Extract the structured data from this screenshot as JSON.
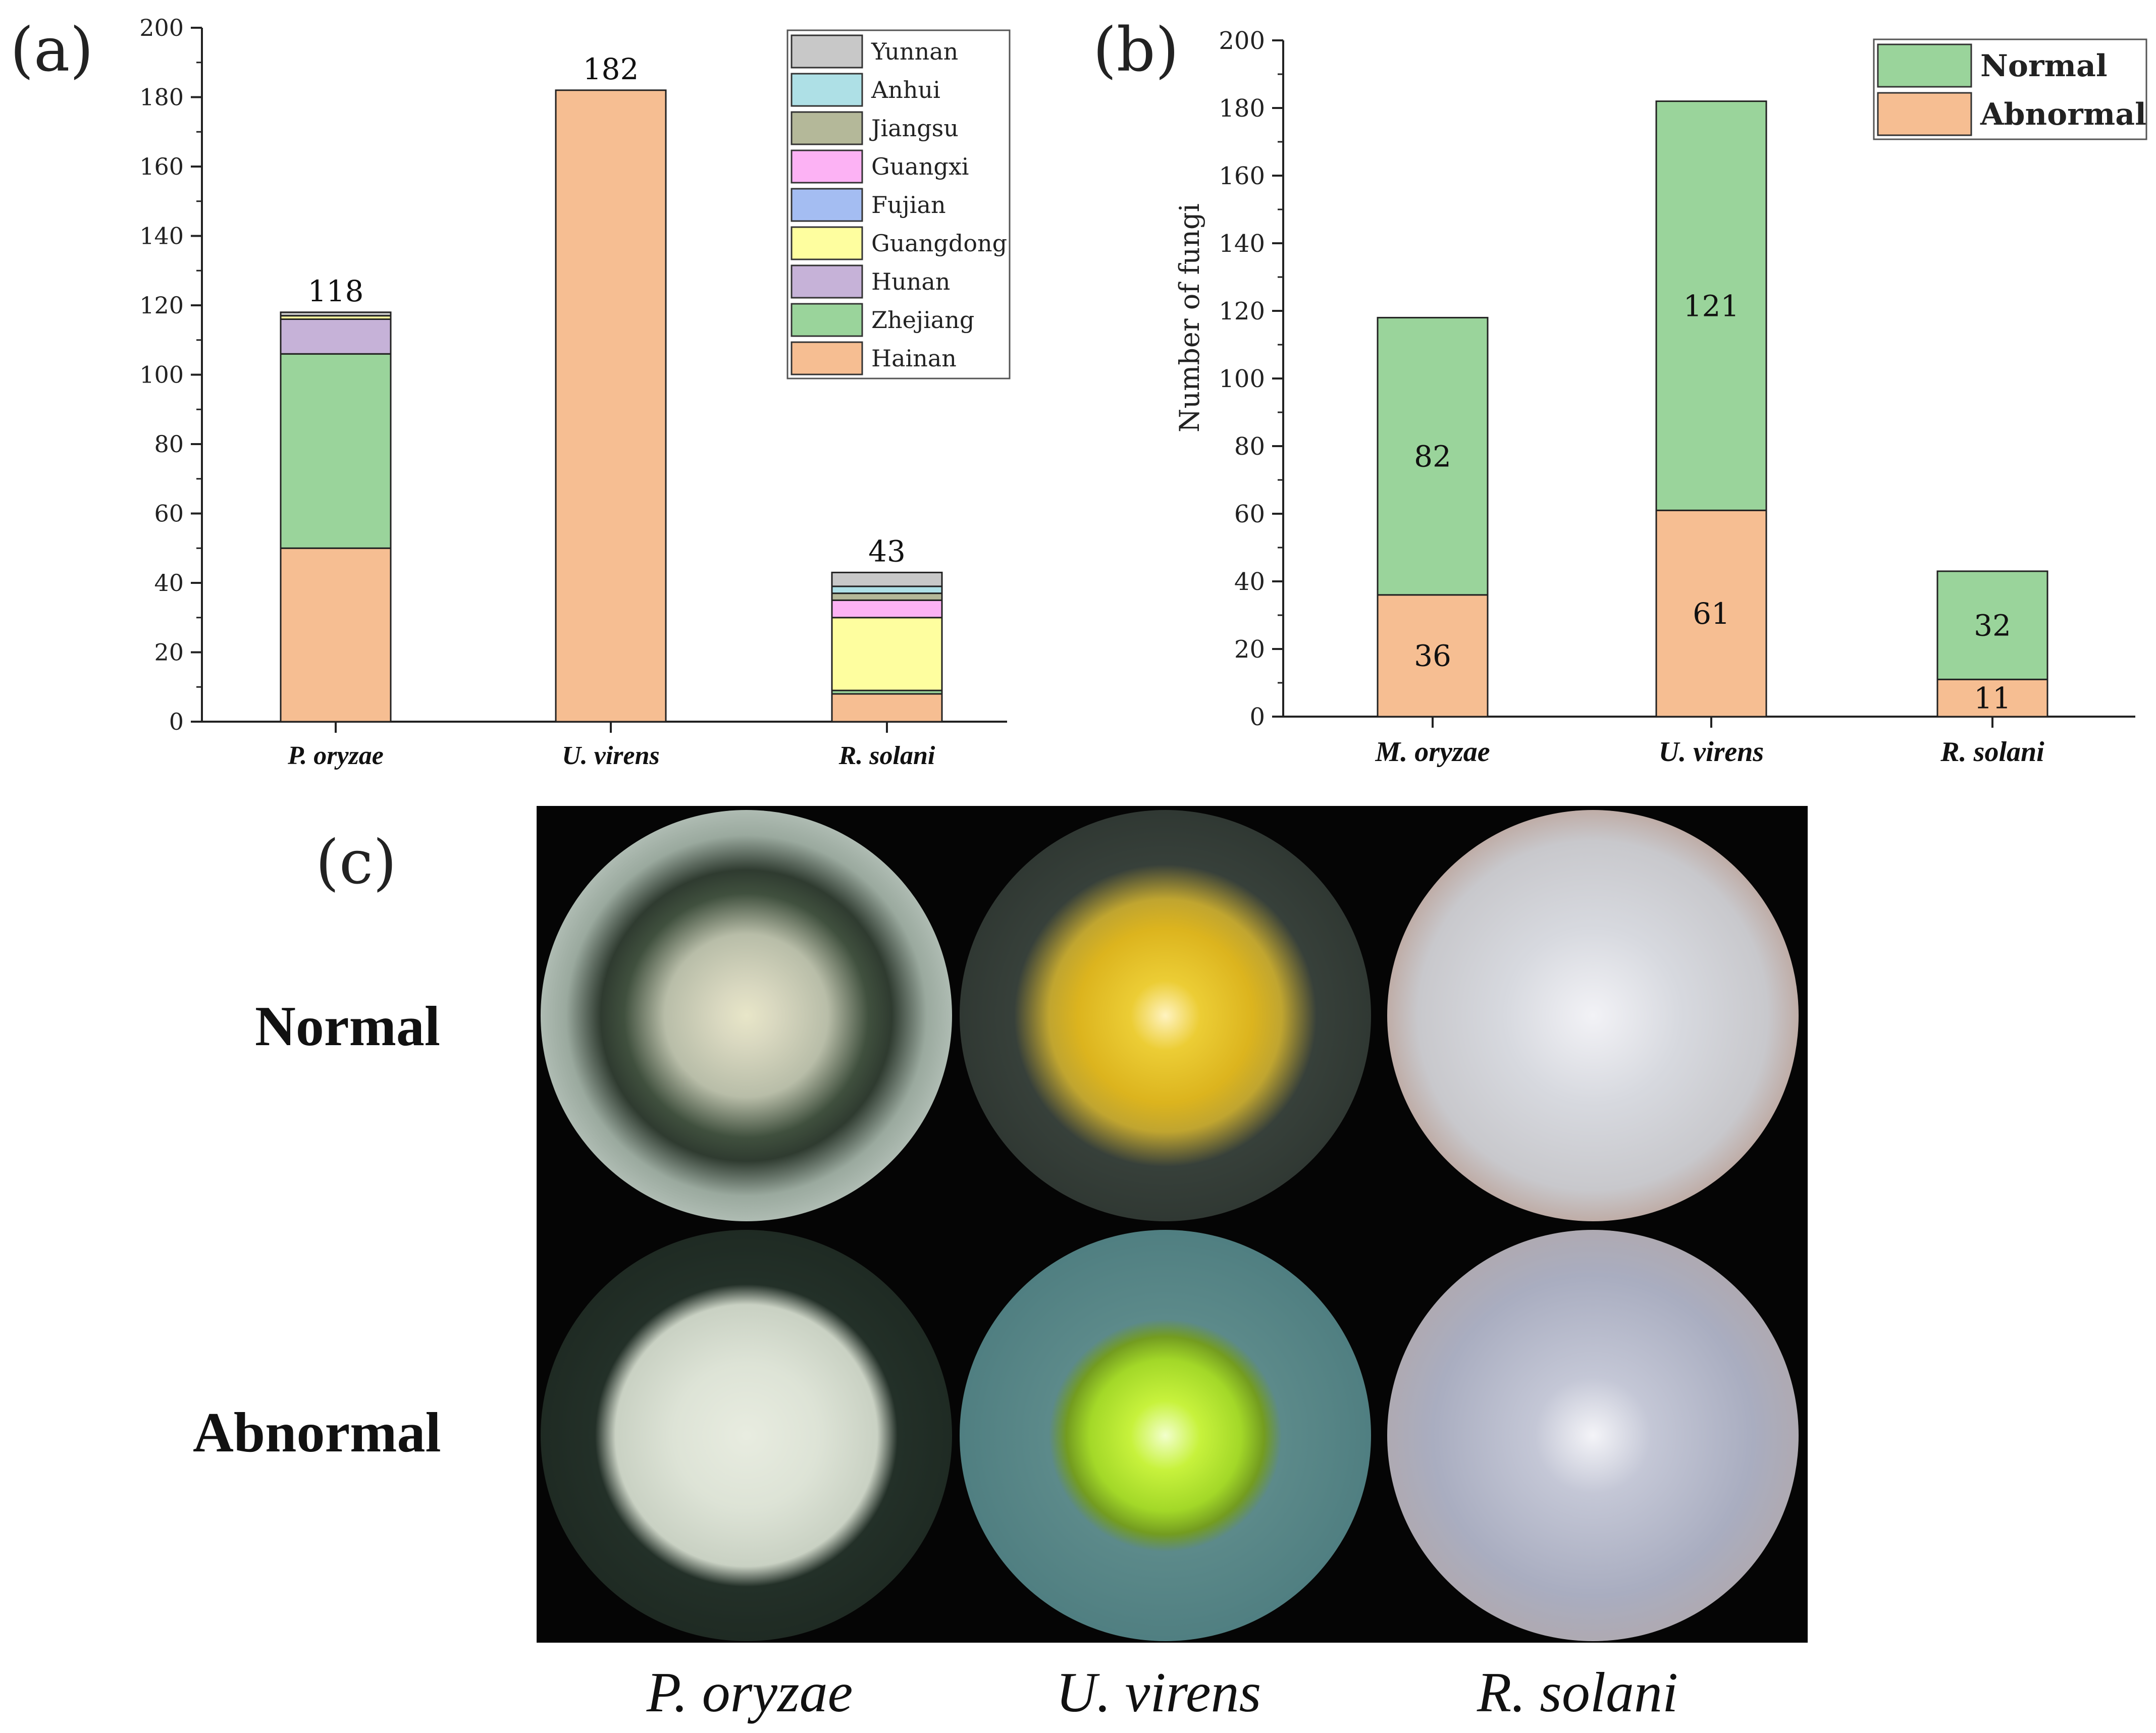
{
  "panels": {
    "a": "(a)",
    "b": "(b)",
    "c": "(c)"
  },
  "chart_data": [
    {
      "type": "bar",
      "stacked": true,
      "categories": [
        "P. oryzae",
        "U. virens",
        "R. solani"
      ],
      "series": [
        {
          "name": "Hainan",
          "values": [
            50,
            182,
            8
          ]
        },
        {
          "name": "Zhejiang",
          "values": [
            56,
            0,
            1
          ]
        },
        {
          "name": "Hunan",
          "values": [
            10,
            0,
            0
          ]
        },
        {
          "name": "Guangdong",
          "values": [
            1,
            0,
            21
          ]
        },
        {
          "name": "Fujian",
          "values": [
            0,
            0,
            0
          ]
        },
        {
          "name": "Guangxi",
          "values": [
            0,
            0,
            5
          ]
        },
        {
          "name": "Jiangsu",
          "values": [
            0,
            0,
            2
          ]
        },
        {
          "name": "Anhui",
          "values": [
            0,
            0,
            2
          ]
        },
        {
          "name": "Yunnan",
          "values": [
            1,
            0,
            4
          ]
        }
      ],
      "totals": [
        "118",
        "182",
        "43"
      ],
      "colors": {
        "Yunnan": "#c8c8c8",
        "Anhui": "#aee0e6",
        "Jiangsu": "#b4b899",
        "Guangxi": "#fcb2f4",
        "Fujian": "#a4bdf2",
        "Guangdong": "#fefe9f",
        "Hunan": "#c6b2d8",
        "Zhejiang": "#9ad49b",
        "Hainan": "#f6be92"
      },
      "legend_order": [
        "Yunnan",
        "Anhui",
        "Jiangsu",
        "Guangxi",
        "Fujian",
        "Guangdong",
        "Hunan",
        "Zhejiang",
        "Hainan"
      ],
      "ylim": [
        0,
        200
      ],
      "yticks": [
        "0",
        "20",
        "40",
        "60",
        "80",
        "100",
        "120",
        "140",
        "160",
        "180",
        "200"
      ],
      "ylabel": "",
      "legend_position": "top-right"
    },
    {
      "type": "bar",
      "stacked": true,
      "categories": [
        "M. oryzae",
        "U. virens",
        "R. solani"
      ],
      "series": [
        {
          "name": "Abnormal",
          "values": [
            36,
            61,
            11
          ],
          "labels": [
            "36",
            "61",
            "11"
          ]
        },
        {
          "name": "Normal",
          "values": [
            82,
            121,
            32
          ],
          "labels": [
            "82",
            "121",
            "32"
          ]
        }
      ],
      "colors": {
        "Normal": "#9ad49b",
        "Abnormal": "#f6be92"
      },
      "legend_order": [
        "Normal",
        "Abnormal"
      ],
      "ylim": [
        0,
        200
      ],
      "yticks": [
        "0",
        "20",
        "40",
        "60",
        "80",
        "100",
        "120",
        "140",
        "160",
        "180",
        "200"
      ],
      "ylabel": "Number of fungi",
      "legend_position": "top-right"
    }
  ],
  "photo_panel": {
    "row_labels": [
      "Normal",
      "Abnormal"
    ],
    "column_labels": [
      "P. oryzae",
      "U. virens",
      "R. solani"
    ]
  }
}
